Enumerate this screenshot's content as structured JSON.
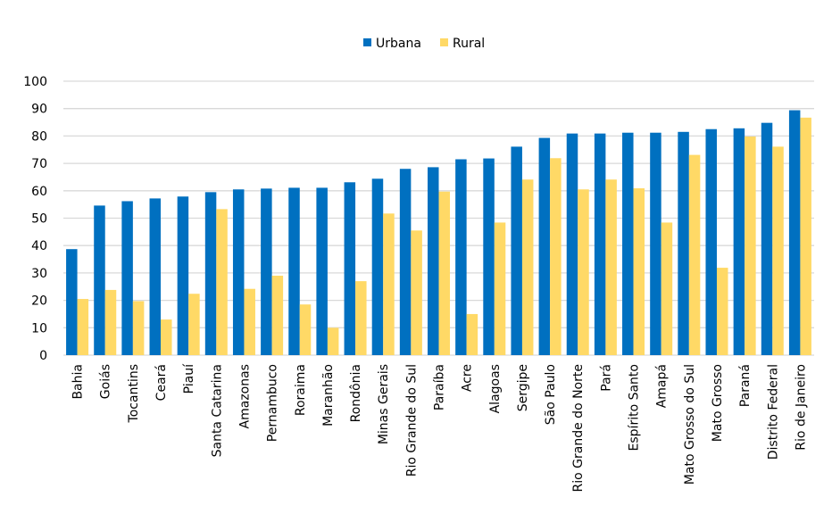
{
  "chart_data": {
    "type": "bar",
    "title": "",
    "xlabel": "",
    "ylabel": "",
    "ylim": [
      0,
      100
    ],
    "yticks": [
      0,
      10,
      20,
      30,
      40,
      50,
      60,
      70,
      80,
      90,
      100
    ],
    "grid": true,
    "legend_position": "top-center",
    "categories": [
      "Bahia",
      "Goiás",
      "Tocantins",
      "Ceará",
      "Piauí",
      "Santa Catarina",
      "Amazonas",
      "Pernambuco",
      "Roraima",
      "Maranhão",
      "Rondônia",
      "Minas Gerais",
      "Rio Grande do Sul",
      "Paraíba",
      "Acre",
      "Alagoas",
      "Sergipe",
      "São Paulo",
      "Rio Grande do Norte",
      "Pará",
      "Espírito Santo",
      "Amapá",
      "Mato Grosso do Sul",
      "Mato Grosso",
      "Paraná",
      "Distrito Federal",
      "Rio de Janeiro"
    ],
    "series": [
      {
        "name": "Urbana",
        "color": "#0070C0",
        "values": [
          38.7,
          54.6,
          56.2,
          57.2,
          57.9,
          59.5,
          60.5,
          60.8,
          61.1,
          61.1,
          63.1,
          64.4,
          68.0,
          68.6,
          71.5,
          71.8,
          76.1,
          79.3,
          80.9,
          80.9,
          81.2,
          81.2,
          81.5,
          82.5,
          82.8,
          84.8,
          89.4
        ]
      },
      {
        "name": "Rural",
        "color": "#FFD966",
        "values": [
          20.5,
          23.8,
          19.7,
          13.0,
          22.4,
          53.3,
          24.2,
          29.0,
          18.5,
          10.0,
          27.0,
          51.7,
          45.5,
          59.7,
          15.0,
          48.4,
          64.1,
          71.9,
          60.5,
          64.1,
          60.9,
          48.4,
          73.1,
          31.9,
          79.8,
          76.1,
          86.7
        ]
      }
    ]
  }
}
